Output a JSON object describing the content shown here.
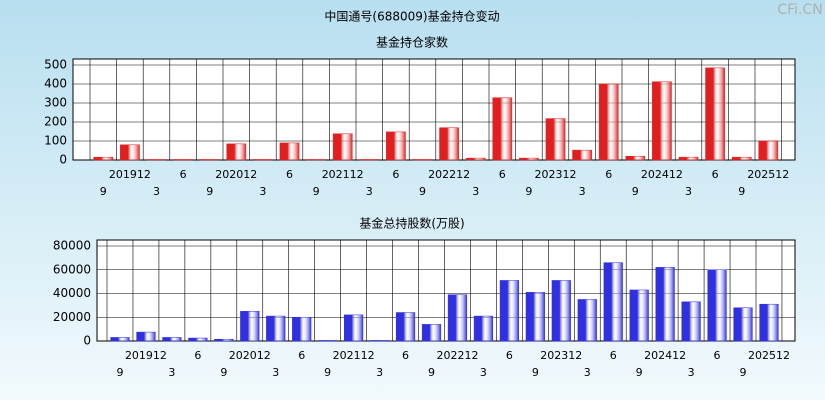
{
  "header": {
    "title": "中国通号(688009)基金持仓变动",
    "watermark": "CFi.CN"
  },
  "chart_data": [
    {
      "type": "bar",
      "title": "基金持仓家数",
      "categories": [
        "9",
        "201912",
        "3",
        "6",
        "9",
        "202012",
        "3",
        "6",
        "9",
        "202112",
        "3",
        "6",
        "9",
        "202212",
        "3",
        "6",
        "9",
        "202312",
        "3",
        "6",
        "9",
        "202412",
        "3",
        "6",
        "9",
        "202512"
      ],
      "values": [
        15,
        80,
        3,
        3,
        3,
        85,
        3,
        90,
        3,
        138,
        3,
        148,
        3,
        170,
        10,
        328,
        10,
        218,
        52,
        400,
        20,
        412,
        15,
        485,
        15,
        100
      ],
      "color": "#e02020",
      "ylim": [
        0,
        500
      ],
      "yticks": [
        0,
        100,
        200,
        300,
        400,
        500
      ],
      "grid": true
    },
    {
      "type": "bar",
      "title": "基金总持股数(万股)",
      "categories": [
        "9",
        "201912",
        "3",
        "6",
        "9",
        "202012",
        "3",
        "6",
        "9",
        "202112",
        "3",
        "6",
        "9",
        "202212",
        "3",
        "6",
        "9",
        "202312",
        "3",
        "6",
        "9",
        "202412",
        "3",
        "6",
        "9",
        "202512"
      ],
      "values": [
        3000,
        7500,
        3000,
        2500,
        1500,
        25000,
        21000,
        20000,
        500,
        22000,
        500,
        24000,
        14000,
        39000,
        21000,
        51000,
        41000,
        51000,
        35000,
        66000,
        43000,
        62000,
        33000,
        60000,
        28000,
        31000
      ],
      "color": "#3030e0",
      "ylim": [
        0,
        80000
      ],
      "yticks": [
        0,
        20000,
        40000,
        60000,
        80000
      ],
      "grid": true
    }
  ]
}
